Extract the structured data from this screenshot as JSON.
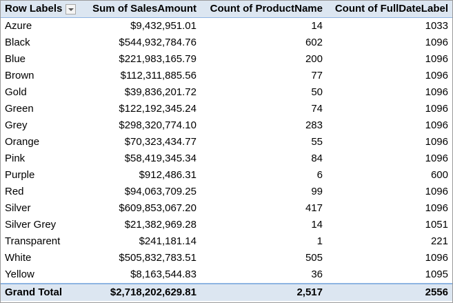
{
  "headers": {
    "row_labels": "Row Labels",
    "sum_sales": "Sum of SalesAmount",
    "count_product": "Count of ProductName",
    "count_date": "Count of FullDateLabel"
  },
  "rows": [
    {
      "label": "Azure",
      "sales": "$9,432,951.01",
      "products": "14",
      "dates": "1033"
    },
    {
      "label": "Black",
      "sales": "$544,932,784.76",
      "products": "602",
      "dates": "1096"
    },
    {
      "label": "Blue",
      "sales": "$221,983,165.79",
      "products": "200",
      "dates": "1096"
    },
    {
      "label": "Brown",
      "sales": "$112,311,885.56",
      "products": "77",
      "dates": "1096"
    },
    {
      "label": "Gold",
      "sales": "$39,836,201.72",
      "products": "50",
      "dates": "1096"
    },
    {
      "label": "Green",
      "sales": "$122,192,345.24",
      "products": "74",
      "dates": "1096"
    },
    {
      "label": "Grey",
      "sales": "$298,320,774.10",
      "products": "283",
      "dates": "1096"
    },
    {
      "label": "Orange",
      "sales": "$70,323,434.77",
      "products": "55",
      "dates": "1096"
    },
    {
      "label": "Pink",
      "sales": "$58,419,345.34",
      "products": "84",
      "dates": "1096"
    },
    {
      "label": "Purple",
      "sales": "$912,486.31",
      "products": "6",
      "dates": "600"
    },
    {
      "label": "Red",
      "sales": "$94,063,709.25",
      "products": "99",
      "dates": "1096"
    },
    {
      "label": "Silver",
      "sales": "$609,853,067.20",
      "products": "417",
      "dates": "1096"
    },
    {
      "label": "Silver Grey",
      "sales": "$21,382,969.28",
      "products": "14",
      "dates": "1051"
    },
    {
      "label": "Transparent",
      "sales": "$241,181.14",
      "products": "1",
      "dates": "221"
    },
    {
      "label": "White",
      "sales": "$505,832,783.51",
      "products": "505",
      "dates": "1096"
    },
    {
      "label": "Yellow",
      "sales": "$8,163,544.83",
      "products": "36",
      "dates": "1095"
    }
  ],
  "total": {
    "label": "Grand Total",
    "sales": "$2,718,202,629.81",
    "products": "2,517",
    "dates": "2556"
  },
  "icons": {
    "filter": "filter-dropdown-icon"
  },
  "colors": {
    "header_bg": "#dce6f1",
    "header_border": "#8db4e2"
  }
}
